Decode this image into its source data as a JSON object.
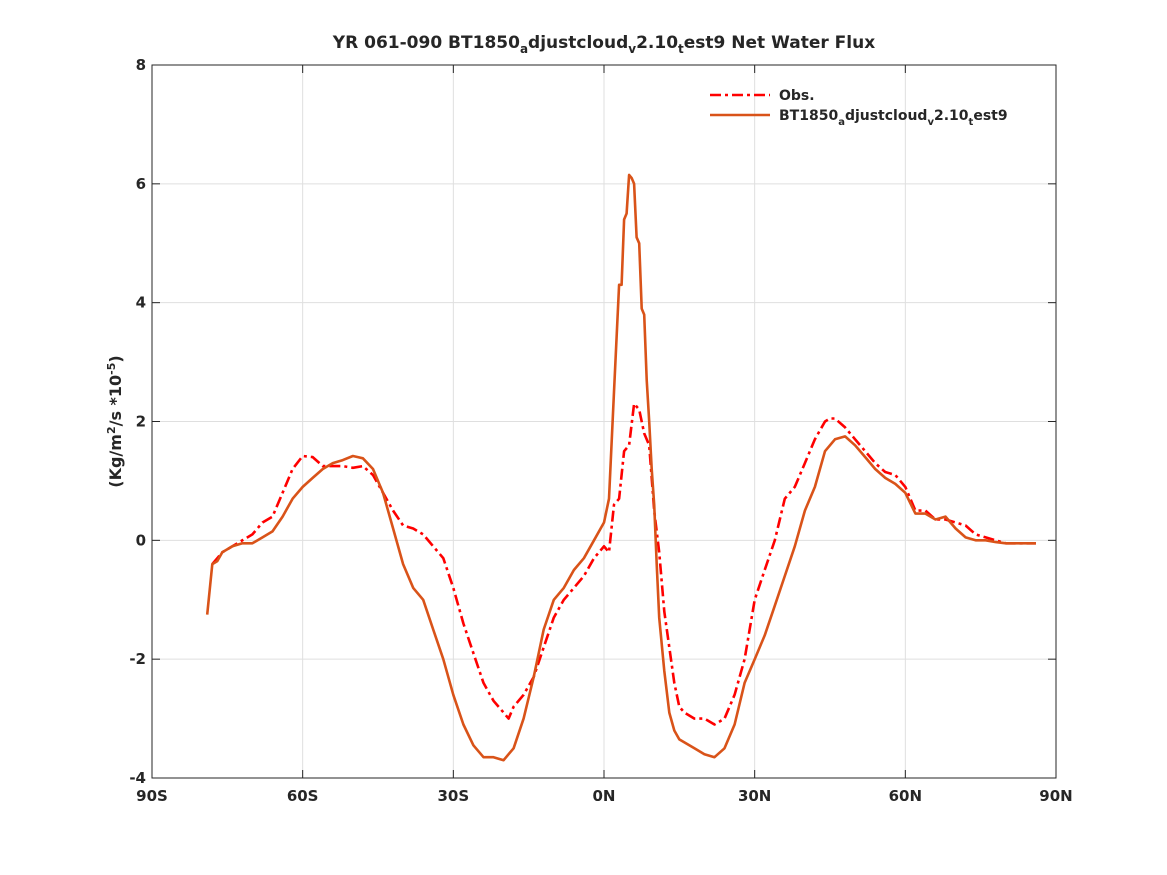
{
  "chart_data": {
    "type": "line",
    "title": {
      "parts": [
        {
          "t": "YR 061-090 BT1850",
          "s": ""
        },
        {
          "t": "a",
          "s": "sub"
        },
        {
          "t": "djustcloud",
          "s": ""
        },
        {
          "t": "v",
          "s": "sub"
        },
        {
          "t": "2.10",
          "s": ""
        },
        {
          "t": "t",
          "s": "sub"
        },
        {
          "t": "est9  Net Water Flux",
          "s": ""
        }
      ]
    },
    "ylabel": {
      "parts": [
        {
          "t": "(Kg/m",
          "s": ""
        },
        {
          "t": "2",
          "s": "sup"
        },
        {
          "t": "/s *10",
          "s": ""
        },
        {
          "t": "-5",
          "s": "sup"
        },
        {
          "t": ")",
          "s": ""
        }
      ]
    },
    "xlim": [
      -90,
      90
    ],
    "ylim": [
      -4,
      8
    ],
    "xticks": [
      -90,
      -60,
      -30,
      0,
      30,
      60,
      90
    ],
    "xtick_labels": [
      "90S",
      "60S",
      "30S",
      "0N",
      "30N",
      "60N",
      "90N"
    ],
    "yticks": [
      -4,
      -2,
      0,
      2,
      4,
      6,
      8
    ],
    "ytick_labels": [
      "-4",
      "-2",
      "0",
      "2",
      "4",
      "6",
      "8"
    ],
    "grid": true,
    "legend_position": "top-right",
    "series": [
      {
        "name": "Obs.",
        "legend_parts": [
          {
            "t": "Obs.",
            "s": ""
          }
        ],
        "color": "#ff0000",
        "style": "dashdot",
        "x": [
          -78,
          -77,
          -76,
          -74,
          -72,
          -70,
          -68,
          -66,
          -64,
          -62,
          -60,
          -58,
          -56,
          -54,
          -52,
          -50,
          -48,
          -46,
          -44,
          -42,
          -40,
          -38,
          -36,
          -34,
          -32,
          -30,
          -28,
          -26,
          -24,
          -22,
          -20,
          -19,
          -18,
          -16,
          -14,
          -12,
          -10,
          -8,
          -6,
          -4,
          -2,
          0,
          1,
          2,
          3,
          4,
          5,
          6,
          7,
          8,
          9,
          10,
          11,
          12,
          13,
          14,
          15,
          16,
          18,
          20,
          22,
          24,
          26,
          28,
          30,
          32,
          34,
          36,
          38,
          40,
          42,
          44,
          45,
          46,
          48,
          50,
          52,
          54,
          56,
          58,
          60,
          62,
          64,
          66,
          68,
          70,
          72,
          74,
          76,
          78,
          80,
          82,
          84,
          86
        ],
        "values": [
          -0.4,
          -0.3,
          -0.2,
          -0.1,
          0.0,
          0.1,
          0.3,
          0.4,
          0.8,
          1.2,
          1.42,
          1.4,
          1.25,
          1.25,
          1.25,
          1.22,
          1.25,
          1.1,
          0.8,
          0.5,
          0.25,
          0.2,
          0.1,
          -0.1,
          -0.3,
          -0.8,
          -1.4,
          -1.9,
          -2.4,
          -2.7,
          -2.9,
          -3.0,
          -2.8,
          -2.6,
          -2.3,
          -1.8,
          -1.3,
          -1.0,
          -0.8,
          -0.6,
          -0.3,
          -0.1,
          -0.2,
          0.6,
          0.7,
          1.5,
          1.6,
          2.3,
          2.2,
          1.8,
          1.6,
          0.5,
          -0.2,
          -1.2,
          -1.8,
          -2.4,
          -2.8,
          -2.9,
          -3.0,
          -3.0,
          -3.1,
          -3.0,
          -2.6,
          -2.0,
          -1.0,
          -0.5,
          0.0,
          0.7,
          0.9,
          1.3,
          1.7,
          2.0,
          2.05,
          2.05,
          1.9,
          1.7,
          1.5,
          1.3,
          1.15,
          1.1,
          0.9,
          0.5,
          0.5,
          0.35,
          0.35,
          0.3,
          0.25,
          0.1,
          0.05,
          0.0,
          -0.05,
          -0.05,
          -0.05,
          -0.05
        ]
      },
      {
        "name": "BT1850adjustcloudv2.10test9",
        "legend_parts": [
          {
            "t": "BT1850",
            "s": ""
          },
          {
            "t": "a",
            "s": "sub"
          },
          {
            "t": "djustcloud",
            "s": ""
          },
          {
            "t": "v",
            "s": "sub"
          },
          {
            "t": "2.10",
            "s": ""
          },
          {
            "t": "t",
            "s": "sub"
          },
          {
            "t": "est9",
            "s": ""
          }
        ],
        "color": "#d95319",
        "style": "solid",
        "x": [
          -79,
          -78,
          -77,
          -76,
          -74,
          -72,
          -70,
          -68,
          -66,
          -64,
          -62,
          -60,
          -58,
          -56,
          -54,
          -52,
          -50,
          -49,
          -48,
          -46,
          -44,
          -42,
          -40,
          -38,
          -36,
          -34,
          -32,
          -30,
          -28,
          -26,
          -24,
          -22,
          -20,
          -19,
          -18,
          -16,
          -14,
          -12,
          -10,
          -8,
          -6,
          -4,
          -2,
          0,
          1,
          2,
          3,
          3.5,
          4,
          4.5,
          5,
          5.5,
          6,
          6.5,
          7,
          7.5,
          8,
          8.5,
          9,
          9.5,
          10,
          10.5,
          11,
          12,
          13,
          14,
          15,
          16,
          18,
          20,
          22,
          24,
          26,
          28,
          30,
          32,
          34,
          36,
          38,
          40,
          42,
          44,
          46,
          48,
          50,
          52,
          54,
          56,
          58,
          60,
          62,
          64,
          66,
          68,
          70,
          72,
          74,
          76,
          78,
          80,
          82,
          84,
          86
        ],
        "values": [
          -1.25,
          -0.4,
          -0.35,
          -0.2,
          -0.1,
          -0.05,
          -0.05,
          0.05,
          0.15,
          0.4,
          0.7,
          0.9,
          1.05,
          1.2,
          1.3,
          1.35,
          1.42,
          1.4,
          1.38,
          1.2,
          0.8,
          0.2,
          -0.4,
          -0.8,
          -1.0,
          -1.5,
          -2.0,
          -2.6,
          -3.1,
          -3.45,
          -3.65,
          -3.65,
          -3.7,
          -3.6,
          -3.5,
          -3.0,
          -2.3,
          -1.5,
          -1.0,
          -0.8,
          -0.5,
          -0.3,
          0.0,
          0.3,
          0.7,
          2.5,
          4.3,
          4.3,
          5.4,
          5.5,
          6.15,
          6.1,
          6.0,
          5.1,
          5.0,
          3.9,
          3.8,
          2.7,
          2.0,
          1.2,
          0.6,
          -0.4,
          -1.3,
          -2.2,
          -2.9,
          -3.2,
          -3.35,
          -3.4,
          -3.5,
          -3.6,
          -3.65,
          -3.5,
          -3.1,
          -2.4,
          -2.0,
          -1.6,
          -1.1,
          -0.6,
          -0.1,
          0.5,
          0.9,
          1.5,
          1.7,
          1.75,
          1.6,
          1.4,
          1.2,
          1.05,
          0.95,
          0.8,
          0.45,
          0.45,
          0.35,
          0.4,
          0.2,
          0.05,
          0.0,
          0.0,
          -0.03,
          -0.05,
          -0.05,
          -0.05,
          -0.05
        ]
      }
    ]
  }
}
